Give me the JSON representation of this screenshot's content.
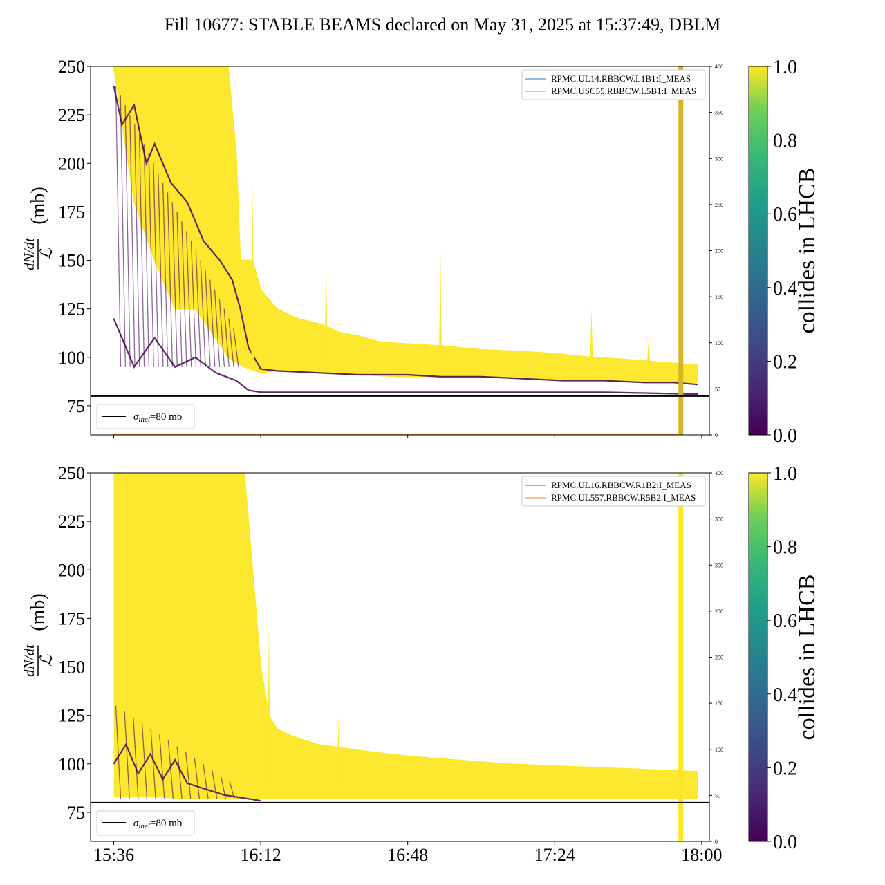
{
  "figure": {
    "title": "Fill 10677: STABLE BEAMS declared on May 31, 2025 at 15:37:49, DBLM"
  },
  "colors": {
    "viridis_high": "#fde725",
    "viridis_low": "#440154",
    "current_line_1": "#1f77b4",
    "current_line_2": "#ff7f0e",
    "reference_line": "#000000"
  },
  "chart_data": [
    {
      "type": "line",
      "panel": "top",
      "ylabel_num": "dN/dt",
      "ylabel_den": "ℒ",
      "ylabel_unit": "(mb)",
      "ylim": [
        60,
        250
      ],
      "yticks": [
        75,
        100,
        125,
        150,
        175,
        200,
        225,
        250
      ],
      "y2lim": [
        0,
        400
      ],
      "y2ticks": [
        0,
        50,
        100,
        150,
        200,
        250,
        300,
        350,
        400
      ],
      "x_range_minutes": [
        -4.5,
        84.5
      ],
      "xticks": [
        {
          "label": "15:36",
          "t": 0
        },
        {
          "label": "16:12",
          "t": 36
        },
        {
          "label": "16:48",
          "t": 72
        },
        {
          "label": "17:24",
          "t": 108
        },
        {
          "label": "18:00",
          "t": 144
        }
      ],
      "legend": [
        {
          "name": "RPMC.UL14.RBBCW.L1B1:I_MEAS",
          "color": "#1f77b4"
        },
        {
          "name": "RPMC.USC55.RBBCW.L5B1:I_MEAS",
          "color": "#ff7f0e"
        }
      ],
      "reference_legend": "=80 mb",
      "reference_symbol": "σ",
      "reference_subscript": "inel",
      "reference_value": 80,
      "colorbar": {
        "label": "collides in LHCB",
        "range": [
          0,
          1
        ],
        "ticks": [
          "0.0",
          "0.2",
          "0.4",
          "0.6",
          "0.8",
          "1.0"
        ]
      },
      "series": [
        {
          "name": "colliding bunches (upper envelope)",
          "color_value": 1.0,
          "x": [
            0,
            1,
            3,
            5,
            7,
            10,
            14,
            18,
            22,
            25,
            28,
            30,
            31,
            34,
            36,
            40,
            45,
            51,
            55,
            60,
            65,
            72,
            80,
            90,
            100,
            108,
            117,
            125,
            137,
            143
          ],
          "y": [
            250,
            250,
            250,
            250,
            250,
            250,
            250,
            250,
            250,
            250,
            250,
            205,
            150,
            150,
            135,
            125,
            120,
            117,
            113,
            111,
            108,
            107,
            106,
            104,
            103,
            102,
            100,
            99,
            97,
            96
          ]
        },
        {
          "name": "colliding bunches (lower envelope)",
          "color_value": 1.0,
          "x": [
            0,
            5,
            10,
            15,
            20,
            25,
            28,
            32,
            36,
            40,
            50,
            60,
            70,
            80,
            90,
            100,
            110,
            120,
            130,
            137,
            143
          ],
          "y": [
            250,
            180,
            150,
            125,
            125,
            110,
            100,
            95,
            92,
            93,
            92,
            91,
            90,
            90,
            90,
            89,
            88,
            88,
            87,
            87,
            87
          ]
        },
        {
          "name": "non-colliding bunches (upper)",
          "color_value": 0.0,
          "x": [
            0,
            2,
            5,
            8,
            10,
            14,
            18,
            22,
            26,
            29,
            31,
            33,
            36,
            40,
            50,
            60,
            72,
            80,
            90,
            100,
            110,
            120,
            130,
            137,
            143
          ],
          "y": [
            240,
            220,
            230,
            200,
            210,
            190,
            180,
            160,
            150,
            140,
            125,
            105,
            94,
            93,
            92,
            91,
            91,
            90,
            90,
            89,
            88,
            88,
            87,
            87,
            86
          ]
        },
        {
          "name": "non-colliding bunches (lower)",
          "color_value": 0.0,
          "x": [
            0,
            5,
            10,
            15,
            20,
            25,
            30,
            33,
            36,
            40,
            60,
            80,
            100,
            120,
            143
          ],
          "y": [
            120,
            95,
            110,
            95,
            100,
            92,
            88,
            83,
            82,
            82,
            82,
            82,
            82,
            82,
            81
          ]
        }
      ],
      "spikes": [
        {
          "x": 34,
          "y": 190
        },
        {
          "x": 37,
          "y": 115
        },
        {
          "x": 52,
          "y": 158
        },
        {
          "x": 80,
          "y": 158
        },
        {
          "x": 117,
          "y": 125
        },
        {
          "x": 131,
          "y": 110
        }
      ]
    },
    {
      "type": "line",
      "panel": "bottom",
      "ylabel_num": "dN/dt",
      "ylabel_den": "ℒ",
      "ylabel_unit": "(mb)",
      "ylim": [
        60,
        250
      ],
      "yticks": [
        75,
        100,
        125,
        150,
        175,
        200,
        225,
        250
      ],
      "y2lim": [
        0,
        400
      ],
      "y2ticks": [
        0,
        50,
        100,
        150,
        200,
        250,
        300,
        350,
        400
      ],
      "x_range_minutes": [
        -4.5,
        84.5
      ],
      "xticks": [
        {
          "label": "15:36",
          "t": 0
        },
        {
          "label": "16:12",
          "t": 36
        },
        {
          "label": "16:48",
          "t": 72
        },
        {
          "label": "17:24",
          "t": 108
        },
        {
          "label": "18:00",
          "t": 144
        }
      ],
      "legend": [
        {
          "name": "RPMC.UL16.RBBCW.R1B2:I_MEAS",
          "color": "#1f77b4"
        },
        {
          "name": "RPMC.UL557.RBBCW.R5B2:I_MEAS",
          "color": "#ff7f0e"
        }
      ],
      "reference_legend": "=80 mb",
      "reference_symbol": "σ",
      "reference_subscript": "inel",
      "reference_value": 80,
      "colorbar": {
        "label": "collides in LHCB",
        "range": [
          0,
          1
        ],
        "ticks": [
          "0.0",
          "0.2",
          "0.4",
          "0.6",
          "0.8",
          "1.0"
        ]
      },
      "series": [
        {
          "name": "colliding bunches (upper envelope)",
          "color_value": 1.0,
          "x": [
            0,
            3,
            8,
            14,
            20,
            26,
            32,
            36,
            38,
            40,
            44,
            50,
            60,
            72,
            84,
            96,
            108,
            120,
            132,
            143
          ],
          "y": [
            250,
            250,
            250,
            250,
            250,
            250,
            250,
            150,
            125,
            118,
            114,
            110,
            107,
            104,
            102,
            100,
            99,
            98,
            97,
            96
          ]
        },
        {
          "name": "colliding bunches (lower envelope)",
          "color_value": 1.0,
          "x": [
            0,
            10,
            20,
            30,
            36,
            40,
            60,
            80,
            100,
            120,
            143
          ],
          "y": [
            83,
            83,
            82,
            82,
            82,
            82,
            82,
            82,
            82,
            82,
            82
          ]
        },
        {
          "name": "non-colliding bunches",
          "color_value": 0.0,
          "x": [
            0,
            3,
            6,
            9,
            12,
            15,
            18,
            21,
            24,
            27,
            30,
            33,
            36
          ],
          "y": [
            100,
            110,
            95,
            105,
            92,
            102,
            90,
            88,
            86,
            84,
            83,
            82,
            81
          ]
        }
      ],
      "spikes": [
        {
          "x": 38,
          "y": 175
        },
        {
          "x": 55,
          "y": 125
        },
        {
          "x": 80,
          "y": 105
        },
        {
          "x": 117,
          "y": 95
        }
      ]
    }
  ]
}
